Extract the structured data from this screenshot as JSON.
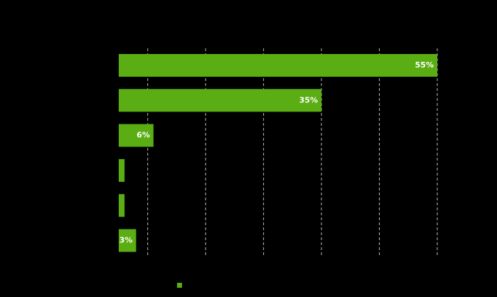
{
  "chart_data": {
    "type": "barh",
    "values": [
      55,
      35,
      6,
      1,
      1,
      3
    ],
    "value_labels": [
      "55%",
      "35%",
      "6%",
      null,
      null,
      "3%"
    ],
    "color": "#5aad12",
    "xlim": [
      0,
      55
    ],
    "xticks": [
      5,
      15,
      25,
      35,
      45,
      55
    ],
    "grid": true
  }
}
